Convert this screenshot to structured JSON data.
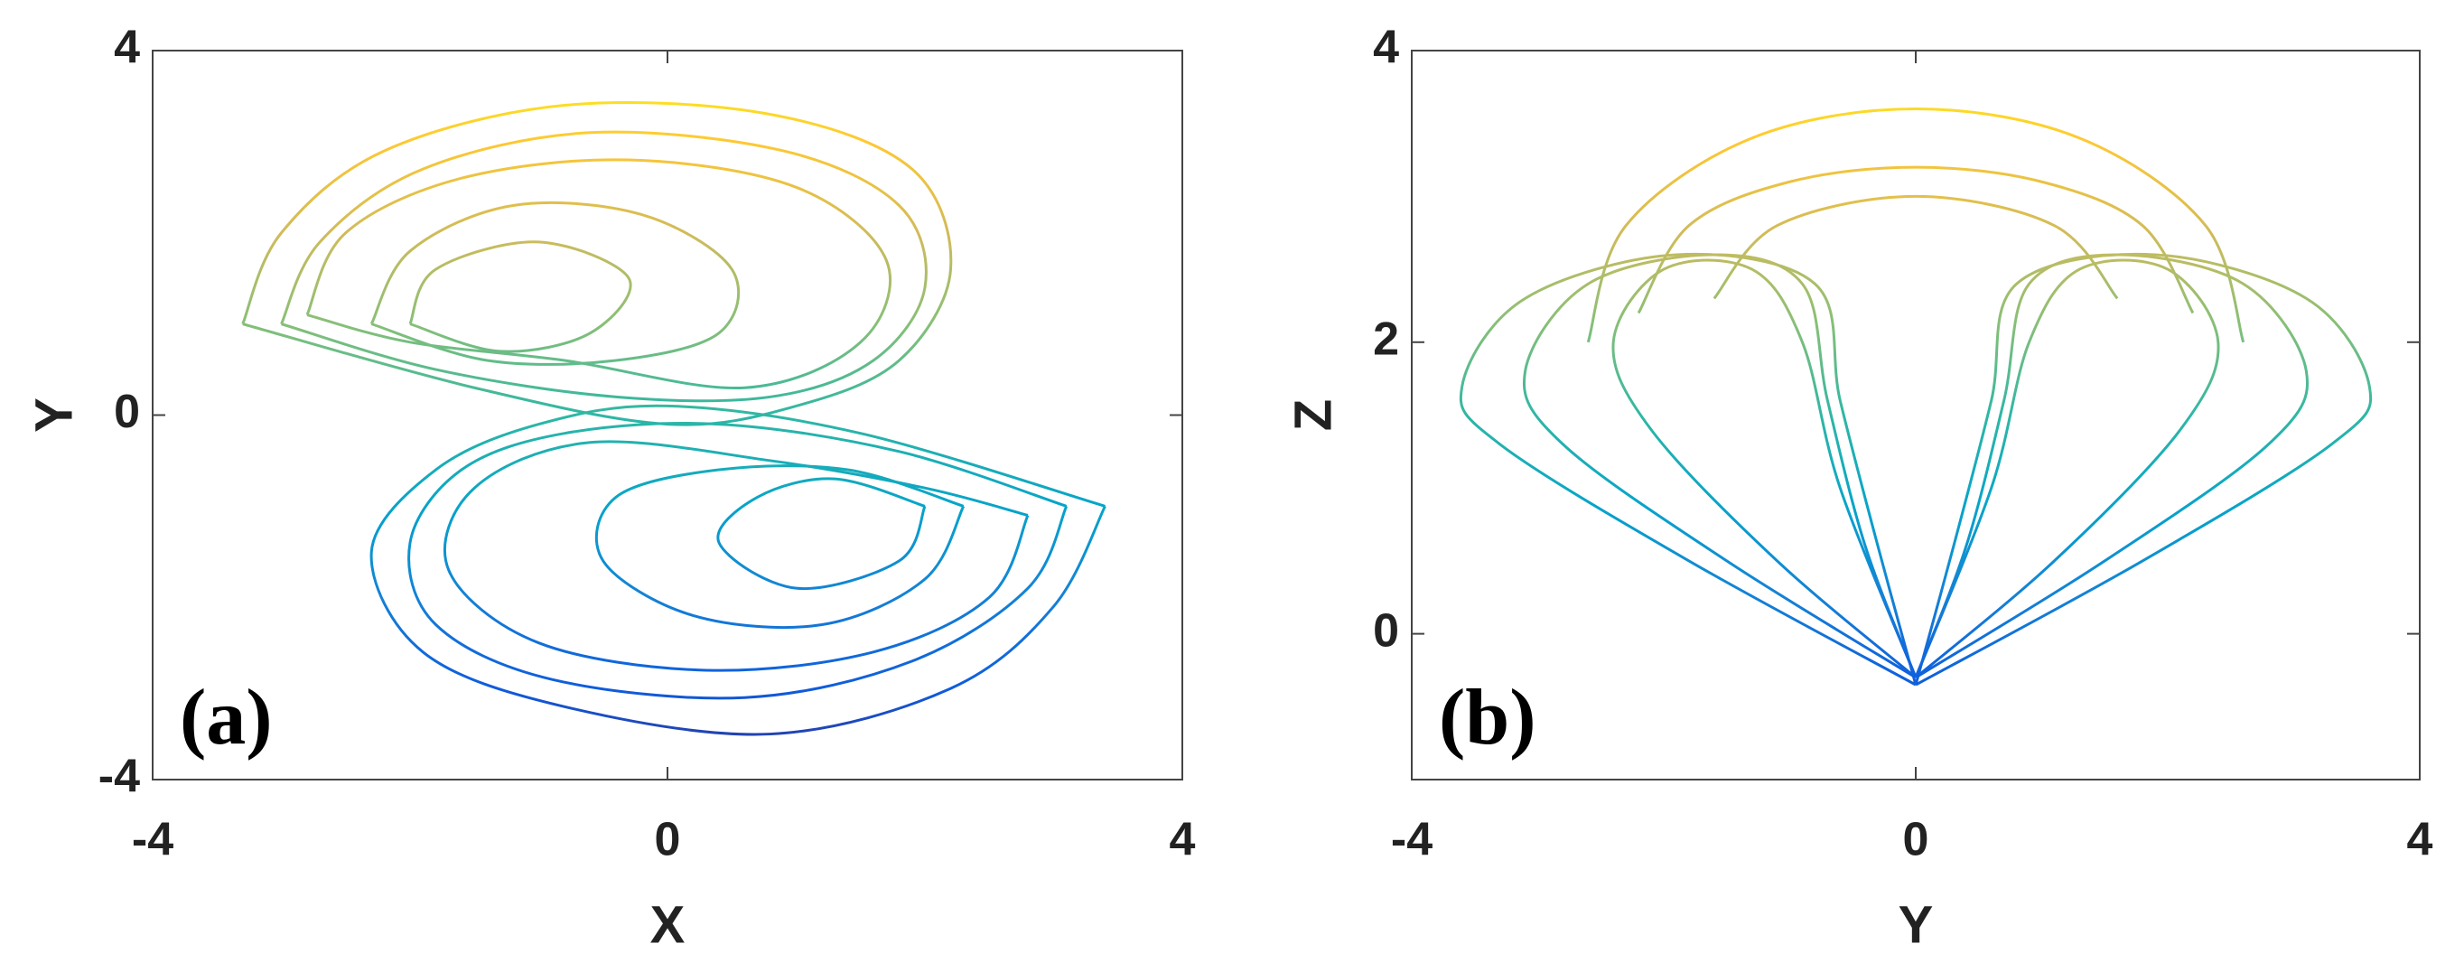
{
  "chart_data": [
    {
      "type": "line",
      "x_label": "X",
      "y_label": "Y",
      "annotation": "(a)",
      "xlim": [
        -4,
        4
      ],
      "ylim": [
        -4,
        4
      ],
      "xticks": [
        -4,
        0,
        4
      ],
      "yticks": [
        -4,
        0,
        4
      ],
      "colormap": [
        "#352a87",
        "#0f5cdd",
        "#1481d6",
        "#06a4ca",
        "#2eb7a4",
        "#87bf77",
        "#d1bb59",
        "#fec832",
        "#f9fb0e"
      ],
      "series": [
        {
          "x": [
            -3.3,
            -3.0,
            -2.2,
            -0.8,
            0.8,
            1.9,
            2.2,
            1.8,
            1.0,
            0.0,
            -1.5,
            -3.3
          ],
          "values": [
            1.0,
            2.0,
            2.9,
            3.4,
            3.3,
            2.7,
            1.6,
            0.6,
            0.1,
            -0.1,
            0.3,
            1.0
          ]
        },
        {
          "x": [
            -3.0,
            -2.7,
            -1.9,
            -0.6,
            0.9,
            1.8,
            2.0,
            1.6,
            0.8,
            -0.4,
            -1.8,
            -3.0
          ],
          "values": [
            1.0,
            1.9,
            2.7,
            3.1,
            2.9,
            2.3,
            1.4,
            0.6,
            0.2,
            0.2,
            0.5,
            1.0
          ]
        },
        {
          "x": [
            -2.8,
            -2.5,
            -1.6,
            -0.3,
            1.0,
            1.7,
            1.5,
            0.6,
            -0.8,
            -2.0,
            -2.8
          ],
          "values": [
            1.1,
            2.0,
            2.6,
            2.8,
            2.5,
            1.7,
            0.8,
            0.3,
            0.6,
            0.8,
            1.1
          ]
        },
        {
          "x": [
            -2.3,
            -2.0,
            -1.2,
            -0.2,
            0.5,
            0.4,
            -0.4,
            -1.4,
            -2.3
          ],
          "values": [
            1.0,
            1.8,
            2.3,
            2.2,
            1.6,
            0.9,
            0.6,
            0.6,
            1.0
          ]
        },
        {
          "x": [
            -2.0,
            -1.8,
            -1.0,
            -0.3,
            -0.6,
            -1.3,
            -2.0
          ],
          "values": [
            1.0,
            1.6,
            1.9,
            1.5,
            0.9,
            0.7,
            1.0
          ]
        },
        {
          "x": [
            3.4,
            3.0,
            2.2,
            0.8,
            -0.8,
            -1.9,
            -2.3,
            -1.8,
            -1.0,
            0.0,
            1.5,
            3.4
          ],
          "values": [
            -1.0,
            -2.1,
            -3.0,
            -3.5,
            -3.2,
            -2.6,
            -1.5,
            -0.6,
            -0.1,
            0.1,
            -0.2,
            -1.0
          ]
        },
        {
          "x": [
            3.1,
            2.8,
            1.9,
            0.6,
            -0.9,
            -1.8,
            -2.0,
            -1.6,
            -0.8,
            0.4,
            1.8,
            3.1
          ],
          "values": [
            -1.0,
            -1.9,
            -2.7,
            -3.1,
            -2.9,
            -2.3,
            -1.4,
            -0.6,
            -0.2,
            -0.1,
            -0.4,
            -1.0
          ]
        },
        {
          "x": [
            2.8,
            2.5,
            1.6,
            0.3,
            -1.0,
            -1.7,
            -1.5,
            -0.6,
            0.8,
            2.0,
            2.8
          ],
          "values": [
            -1.1,
            -2.0,
            -2.6,
            -2.8,
            -2.5,
            -1.7,
            -0.8,
            -0.3,
            -0.5,
            -0.8,
            -1.1
          ]
        },
        {
          "x": [
            2.3,
            2.0,
            1.2,
            0.2,
            -0.5,
            -0.4,
            0.4,
            1.4,
            2.3
          ],
          "values": [
            -1.0,
            -1.8,
            -2.3,
            -2.2,
            -1.6,
            -0.9,
            -0.6,
            -0.6,
            -1.0
          ]
        },
        {
          "x": [
            2.0,
            1.8,
            1.0,
            0.4,
            0.7,
            1.3,
            2.0
          ],
          "values": [
            -1.0,
            -1.6,
            -1.9,
            -1.4,
            -0.9,
            -0.7,
            -1.0
          ]
        }
      ]
    },
    {
      "type": "line",
      "x_label": "Y",
      "y_label": "Z",
      "annotation": "(b)",
      "xlim": [
        -4,
        4
      ],
      "ylim": [
        -1,
        4
      ],
      "xticks": [
        -4,
        0,
        4
      ],
      "yticks": [
        0,
        2,
        4
      ],
      "colormap": [
        "#352a87",
        "#0f5cdd",
        "#1481d6",
        "#06a4ca",
        "#2eb7a4",
        "#87bf77",
        "#d1bb59",
        "#fec832",
        "#f9fb0e"
      ],
      "series": [
        {
          "x": [
            0.0,
            -1.8,
            -3.3,
            -3.6,
            -3.1,
            -1.9,
            -0.8,
            -0.6,
            -0.3,
            0.0
          ],
          "values": [
            -0.35,
            0.5,
            1.3,
            1.7,
            2.3,
            2.6,
            2.4,
            1.6,
            0.6,
            -0.35
          ]
        },
        {
          "x": [
            0.0,
            -1.5,
            -2.8,
            -3.1,
            -2.6,
            -1.6,
            -0.9,
            -0.7,
            -0.4,
            0.0
          ],
          "values": [
            -0.3,
            0.5,
            1.3,
            1.8,
            2.4,
            2.6,
            2.4,
            1.6,
            0.6,
            -0.3
          ]
        },
        {
          "x": [
            0.0,
            -1.1,
            -2.1,
            -2.4,
            -2.0,
            -1.3,
            -0.9,
            -0.6,
            0.0
          ],
          "values": [
            -0.3,
            0.5,
            1.4,
            2.0,
            2.5,
            2.5,
            2.0,
            1.0,
            -0.3
          ]
        },
        {
          "x": [
            0.0,
            1.8,
            3.3,
            3.6,
            3.1,
            1.9,
            0.8,
            0.6,
            0.3,
            0.0
          ],
          "values": [
            -0.35,
            0.5,
            1.3,
            1.7,
            2.3,
            2.6,
            2.4,
            1.6,
            0.6,
            -0.35
          ]
        },
        {
          "x": [
            0.0,
            1.5,
            2.8,
            3.1,
            2.6,
            1.6,
            0.9,
            0.7,
            0.4,
            0.0
          ],
          "values": [
            -0.3,
            0.5,
            1.3,
            1.8,
            2.4,
            2.6,
            2.4,
            1.6,
            0.6,
            -0.3
          ]
        },
        {
          "x": [
            0.0,
            1.1,
            2.1,
            2.4,
            2.0,
            1.3,
            0.9,
            0.6,
            0.0
          ],
          "values": [
            -0.3,
            0.5,
            1.4,
            2.0,
            2.5,
            2.5,
            2.0,
            1.0,
            -0.3
          ]
        },
        {
          "x": [
            -2.6,
            -2.3,
            -1.3,
            0.0,
            1.3,
            2.3,
            2.6
          ],
          "values": [
            2.0,
            2.8,
            3.4,
            3.6,
            3.4,
            2.8,
            2.0
          ]
        },
        {
          "x": [
            -2.2,
            -1.8,
            -1.0,
            0.0,
            1.0,
            1.8,
            2.2
          ],
          "values": [
            2.2,
            2.8,
            3.1,
            3.2,
            3.1,
            2.8,
            2.2
          ]
        },
        {
          "x": [
            -1.6,
            -1.1,
            0.0,
            1.1,
            1.6
          ],
          "values": [
            2.3,
            2.8,
            3.0,
            2.8,
            2.3
          ]
        }
      ]
    }
  ]
}
